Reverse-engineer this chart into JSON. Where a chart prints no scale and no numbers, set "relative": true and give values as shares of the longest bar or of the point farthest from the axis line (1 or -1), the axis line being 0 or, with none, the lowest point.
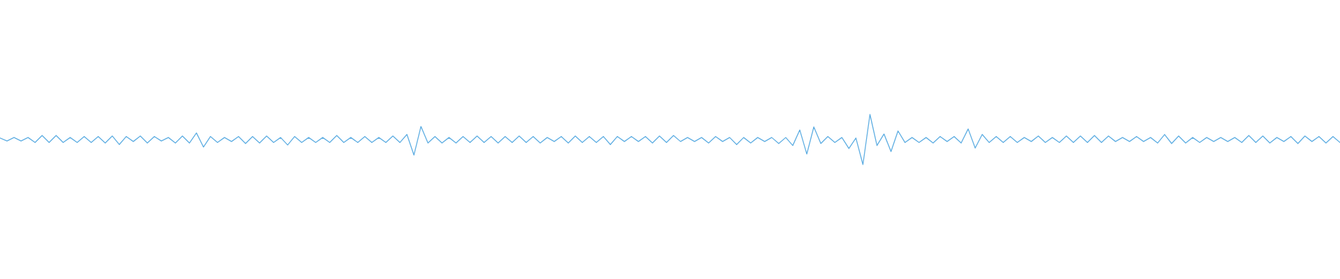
{
  "chart_data": {
    "type": "line",
    "relative": true,
    "color": "#5dade2",
    "marker": "none",
    "tick_labels": false,
    "categories": [
      null,
      null,
      null,
      null,
      null,
      null,
      null,
      null,
      null,
      null,
      null,
      null,
      null,
      null,
      null,
      null,
      null,
      null,
      null,
      null,
      null,
      null,
      null,
      null,
      null,
      null,
      null,
      null,
      null,
      null,
      null,
      null,
      null,
      null,
      null,
      null,
      null,
      null,
      null,
      null,
      null,
      null,
      null,
      null,
      null,
      null,
      null,
      null,
      null,
      null,
      null,
      null,
      null,
      null,
      null,
      null,
      null,
      null,
      null,
      null,
      null,
      null,
      null,
      null,
      null,
      null,
      null,
      null,
      null,
      null,
      null,
      null,
      null,
      null,
      null,
      null,
      null,
      null,
      null,
      null,
      null,
      null,
      null,
      null,
      null,
      null,
      null,
      null,
      null,
      null,
      null,
      null,
      null,
      null,
      null,
      null,
      null,
      null,
      null,
      null,
      null,
      null,
      null,
      null,
      null,
      null,
      null,
      null,
      null,
      null,
      null,
      null,
      null,
      null,
      null,
      null,
      null,
      null,
      null,
      null,
      null,
      null,
      null,
      null,
      null,
      null,
      null,
      null,
      null,
      null,
      null,
      null,
      null,
      null,
      null,
      null,
      null,
      null,
      null,
      null,
      null,
      null,
      null,
      null,
      null,
      null,
      null,
      null,
      null,
      null,
      null,
      null,
      null,
      null,
      null,
      null,
      null,
      null,
      null,
      null,
      null,
      null,
      null,
      null,
      null,
      null,
      null,
      null,
      null,
      null,
      null,
      null,
      null,
      null,
      null,
      null,
      null,
      null,
      null,
      null,
      null,
      null,
      null,
      null,
      null,
      null,
      null,
      null,
      null,
      null,
      null,
      null
    ],
    "values": [
      0.53,
      0.47,
      0.54,
      0.47,
      0.54,
      0.44,
      0.58,
      0.44,
      0.58,
      0.44,
      0.54,
      0.44,
      0.56,
      0.44,
      0.56,
      0.43,
      0.57,
      0.4,
      0.56,
      0.46,
      0.57,
      0.43,
      0.56,
      0.47,
      0.54,
      0.43,
      0.57,
      0.43,
      0.63,
      0.35,
      0.56,
      0.44,
      0.54,
      0.46,
      0.56,
      0.42,
      0.56,
      0.43,
      0.57,
      0.44,
      0.54,
      0.39,
      0.56,
      0.44,
      0.54,
      0.44,
      0.54,
      0.44,
      0.58,
      0.44,
      0.54,
      0.44,
      0.56,
      0.44,
      0.54,
      0.44,
      0.57,
      0.44,
      0.6,
      0.19,
      0.76,
      0.43,
      0.56,
      0.43,
      0.54,
      0.43,
      0.56,
      0.44,
      0.57,
      0.44,
      0.56,
      0.43,
      0.56,
      0.44,
      0.57,
      0.44,
      0.56,
      0.43,
      0.54,
      0.46,
      0.56,
      0.43,
      0.57,
      0.44,
      0.56,
      0.44,
      0.56,
      0.4,
      0.56,
      0.46,
      0.56,
      0.46,
      0.56,
      0.43,
      0.57,
      0.44,
      0.58,
      0.46,
      0.54,
      0.46,
      0.54,
      0.43,
      0.56,
      0.46,
      0.54,
      0.4,
      0.54,
      0.43,
      0.54,
      0.46,
      0.54,
      0.42,
      0.54,
      0.38,
      0.69,
      0.21,
      0.75,
      0.42,
      0.56,
      0.44,
      0.54,
      0.32,
      0.53,
      0,
      1,
      0.38,
      0.61,
      0.26,
      0.67,
      0.44,
      0.54,
      0.44,
      0.54,
      0.43,
      0.56,
      0.46,
      0.56,
      0.43,
      0.71,
      0.33,
      0.6,
      0.44,
      0.56,
      0.44,
      0.56,
      0.44,
      0.54,
      0.46,
      0.57,
      0.44,
      0.54,
      0.44,
      0.57,
      0.44,
      0.57,
      0.44,
      0.58,
      0.44,
      0.57,
      0.46,
      0.54,
      0.46,
      0.56,
      0.46,
      0.54,
      0.43,
      0.6,
      0.42,
      0.57,
      0.43,
      0.54,
      0.44,
      0.54,
      0.46,
      0.54,
      0.46,
      0.54,
      0.44,
      0.58,
      0.44,
      0.57,
      0.43,
      0.54,
      0.46,
      0.56,
      0.42,
      0.57,
      0.46,
      0.56,
      0.43,
      0.56,
      0.44
    ]
  }
}
